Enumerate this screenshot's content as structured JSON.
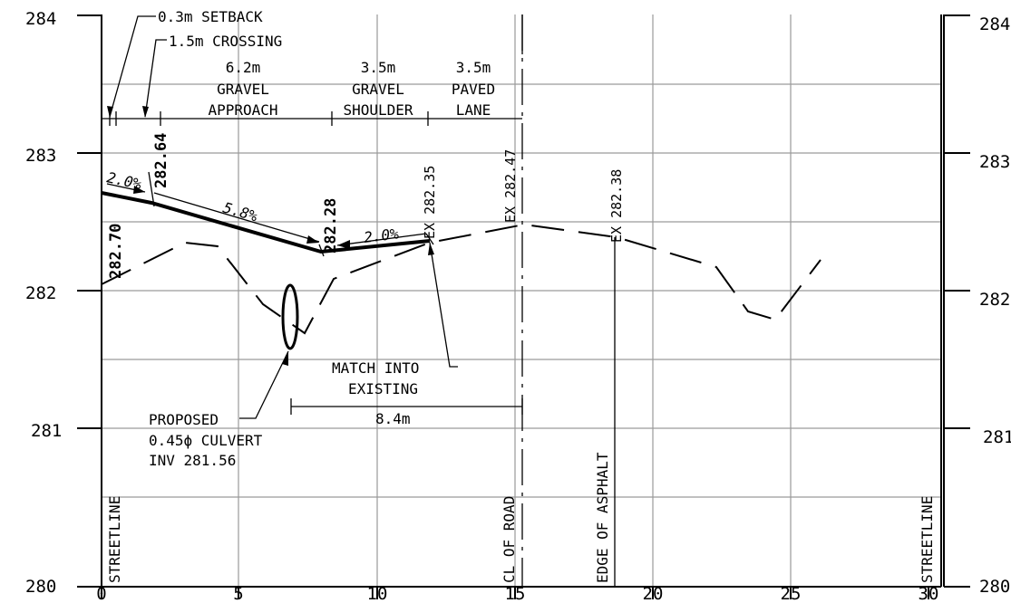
{
  "y_axis_left": [
    "284",
    "283",
    "282",
    "281",
    "280"
  ],
  "y_axis_right": [
    "284",
    "283",
    "282",
    "281",
    "280"
  ],
  "x_axis": [
    "0",
    "5",
    "10",
    "15",
    "20",
    "25",
    "30"
  ],
  "callouts": {
    "setback": "0.3m SETBACK",
    "crossing": "1.5m CROSSING"
  },
  "segments": [
    {
      "width": "6.2m",
      "l1": "GRAVEL",
      "l2": "APPROACH"
    },
    {
      "width": "3.5m",
      "l1": "GRAVEL",
      "l2": "SHOULDER"
    },
    {
      "width": "3.5m",
      "l1": "PAVED",
      "l2": "LANE"
    }
  ],
  "elevations": {
    "e1": "282.70",
    "e2": "282.64",
    "e3": "282.28",
    "ex1": "EX 282.35",
    "ex2": "EX 282.47",
    "ex3": "EX 282.38"
  },
  "slopes": {
    "s1": "2.0%",
    "s2": "5.8%",
    "s3": "2.0%"
  },
  "notes": {
    "match_1": "MATCH INTO",
    "match_2": "EXISTING",
    "dimension": "8.4m",
    "culvert_1": "PROPOSED",
    "culvert_2": "0.45ϕ CULVERT",
    "culvert_3": "INV 281.56"
  },
  "vertical_labels": {
    "streetline_left": "STREETLINE",
    "cl_road": "CL OF ROAD",
    "edge_asphalt": "EDGE OF ASPHALT",
    "streetline_right": "STREETLINE"
  }
}
